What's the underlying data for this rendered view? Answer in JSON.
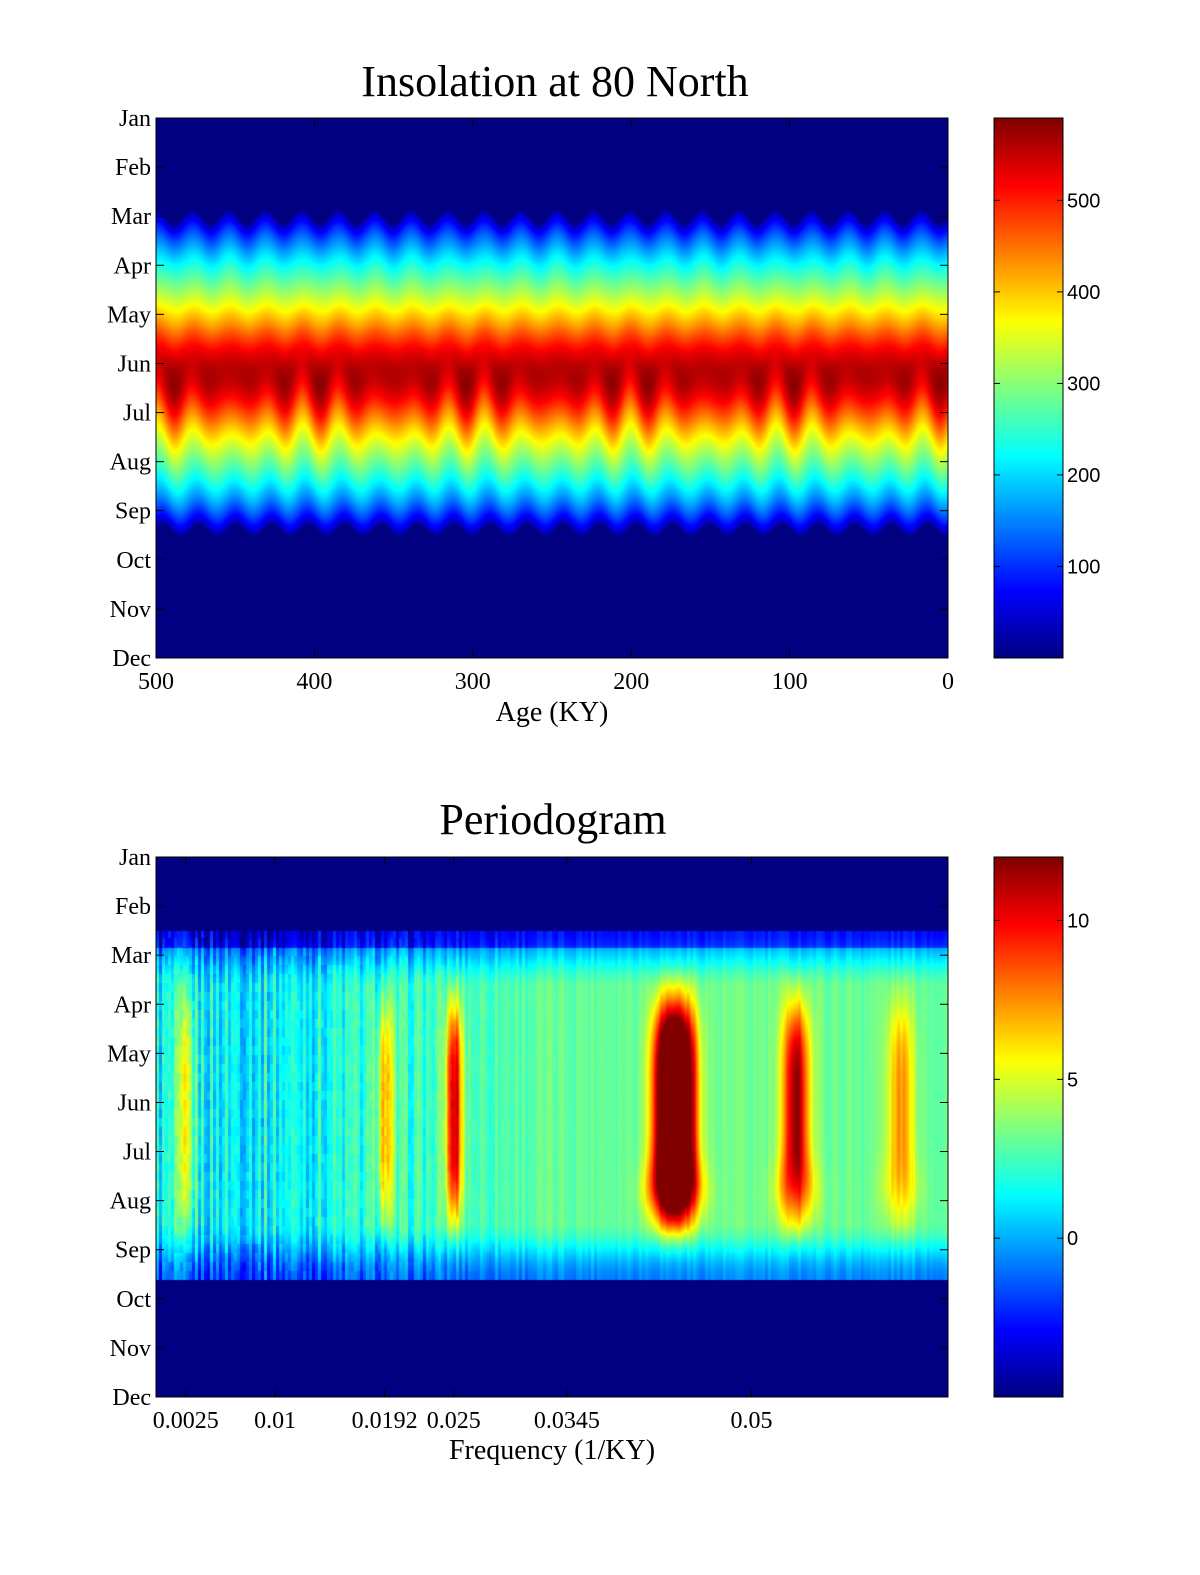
{
  "chart_data": [
    {
      "type": "heatmap",
      "title": "Insolation at 80 North",
      "xlabel": "Age (KY)",
      "ylabel": "",
      "xlim": [
        500,
        0
      ],
      "x_ticks": [
        500,
        400,
        300,
        200,
        100,
        0
      ],
      "x_tick_labels": [
        "500",
        "400",
        "300",
        "200",
        "100",
        "0"
      ],
      "y_tick_labels": [
        "Jan",
        "Feb",
        "Mar",
        "Apr",
        "May",
        "Jun",
        "Jul",
        "Aug",
        "Sep",
        "Oct",
        "Nov",
        "Dec"
      ],
      "colormap": "jet",
      "colorbar": {
        "range": [
          0,
          590
        ],
        "ticks": [
          100,
          200,
          300,
          400,
          500
        ],
        "tick_labels": [
          "100",
          "200",
          "300",
          "400",
          "500"
        ]
      },
      "band": {
        "onset_month": 3.0,
        "peak_month": 6.2,
        "end_month": 9.4,
        "peak_value": 560,
        "modulation_period_ky": 23
      }
    },
    {
      "type": "heatmap",
      "title": "Periodogram",
      "xlabel": "Frequency (1/KY)",
      "ylabel": "",
      "xlim": [
        0,
        0.0665
      ],
      "x_ticks": [
        0.0025,
        0.01,
        0.0192,
        0.025,
        0.0345,
        0.05
      ],
      "x_tick_labels": [
        "0.0025",
        "0.01",
        "0.0192",
        "0.025",
        "0.0345",
        "0.05"
      ],
      "y_tick_labels": [
        "Jan",
        "Feb",
        "Mar",
        "Apr",
        "May",
        "Jun",
        "Jul",
        "Aug",
        "Sep",
        "Oct",
        "Nov",
        "Dec"
      ],
      "colormap": "jet",
      "colorbar": {
        "range": [
          -5,
          12
        ],
        "ticks": [
          0,
          5,
          10
        ],
        "tick_labels": [
          "0",
          "5",
          "10"
        ]
      },
      "active_months": [
        2.5,
        9.6
      ],
      "background_value": 3.2,
      "peaks": [
        {
          "frequency": 0.025,
          "value": 11.5
        },
        {
          "frequency": 0.0425,
          "value": 11.5
        },
        {
          "frequency": 0.0435,
          "value": 12.0
        },
        {
          "frequency": 0.0445,
          "value": 11.5
        },
        {
          "frequency": 0.0537,
          "value": 12.0
        },
        {
          "frequency": 0.0192,
          "value": 8.0
        },
        {
          "frequency": 0.0025,
          "value": 6.5
        },
        {
          "frequency": 0.0625,
          "value": 7.5
        }
      ]
    }
  ]
}
